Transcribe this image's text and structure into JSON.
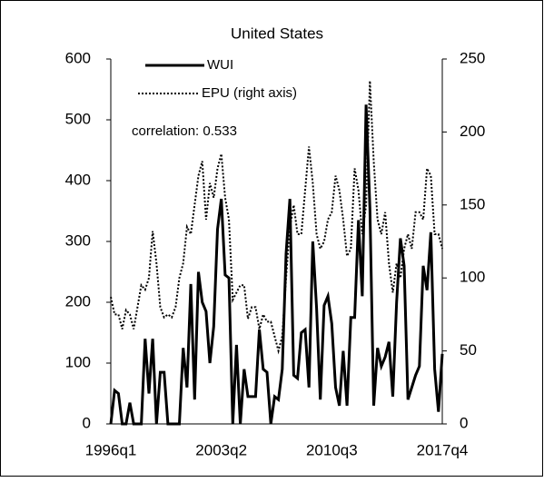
{
  "chart_data": {
    "type": "line",
    "title": "United States",
    "categories": [
      "1996q1",
      null,
      null,
      null,
      null,
      null,
      null,
      null,
      null,
      null,
      null,
      null,
      null,
      null,
      null,
      null,
      null,
      null,
      null,
      null,
      null,
      null,
      null,
      null,
      null,
      null,
      null,
      null,
      null,
      "2003q2",
      null,
      null,
      null,
      null,
      null,
      null,
      null,
      null,
      null,
      null,
      null,
      null,
      null,
      null,
      null,
      null,
      null,
      null,
      null,
      null,
      null,
      null,
      null,
      null,
      null,
      null,
      null,
      null,
      "2010q3",
      null,
      null,
      null,
      null,
      null,
      null,
      null,
      null,
      null,
      null,
      null,
      null,
      null,
      null,
      null,
      null,
      null,
      null,
      null,
      null,
      null,
      null,
      null,
      null,
      null,
      null,
      null,
      null,
      "2017q4"
    ],
    "series": [
      {
        "name": "WUI",
        "color": "#000000",
        "dash": "solid",
        "values": [
          0,
          55,
          50,
          0,
          0,
          35,
          0,
          0,
          0,
          140,
          50,
          140,
          0,
          85,
          85,
          0,
          0,
          0,
          0,
          125,
          60,
          230,
          40,
          250,
          200,
          185,
          100,
          160,
          320,
          370,
          245,
          240,
          0,
          130,
          0,
          90,
          45,
          45,
          45,
          155,
          90,
          85,
          0,
          45,
          40,
          90,
          280,
          370,
          80,
          75,
          150,
          155,
          60,
          300,
          190,
          40,
          195,
          210,
          165,
          60,
          30,
          120,
          30,
          175,
          175,
          335,
          210,
          525,
          355,
          30,
          125,
          95,
          110,
          135,
          45,
          200,
          305,
          260,
          40,
          60,
          80,
          95,
          260,
          220,
          315,
          90,
          20,
          115
        ]
      },
      {
        "name": "EPU (right axis)",
        "color": "#000000",
        "dash": "dotted",
        "axis": "y2",
        "values": [
          87,
          75,
          75,
          65,
          78,
          75,
          65,
          80,
          95,
          92,
          100,
          132,
          110,
          80,
          73,
          75,
          73,
          80,
          100,
          110,
          135,
          130,
          150,
          170,
          180,
          140,
          165,
          155,
          175,
          185,
          155,
          140,
          85,
          90,
          95,
          95,
          72,
          80,
          80,
          65,
          75,
          70,
          70,
          60,
          50,
          60,
          100,
          135,
          150,
          130,
          130,
          160,
          190,
          165,
          130,
          120,
          125,
          140,
          145,
          170,
          160,
          140,
          115,
          120,
          175,
          160,
          130,
          150,
          235,
          180,
          140,
          130,
          145,
          110,
          90,
          110,
          100,
          120,
          130,
          120,
          145,
          145,
          140,
          175,
          170,
          130,
          130,
          120
        ]
      }
    ],
    "annotation": "correlation: 0.533",
    "ylim": [
      0,
      600
    ],
    "yticks": [
      0,
      100,
      200,
      300,
      400,
      500,
      600
    ],
    "y2lim": [
      0,
      250
    ],
    "y2ticks": [
      0,
      50,
      100,
      150,
      200,
      250
    ]
  }
}
